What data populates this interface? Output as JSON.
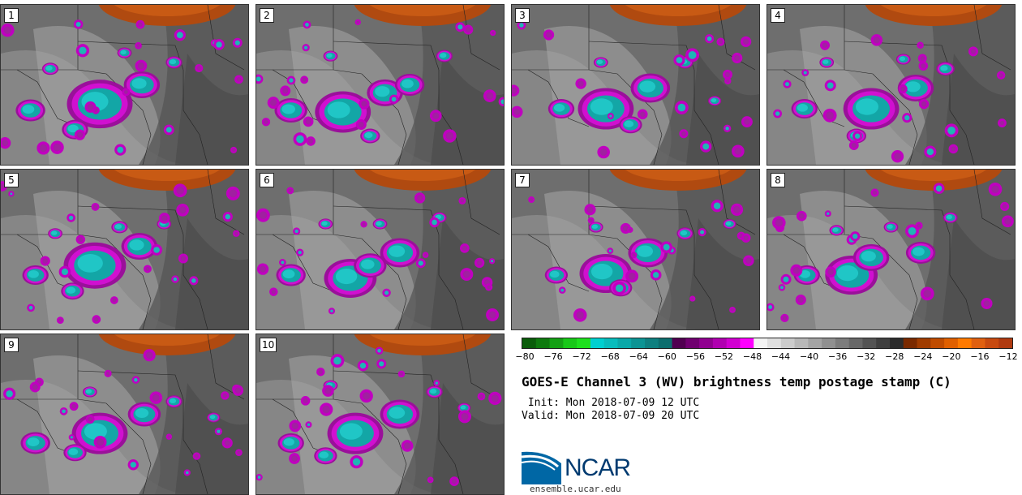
{
  "panels": [
    {
      "label": "1",
      "blobs": [
        [
          0.4,
          0.62,
          1.0
        ],
        [
          0.57,
          0.5,
          0.55
        ],
        [
          0.12,
          0.66,
          0.45
        ],
        [
          0.3,
          0.78,
          0.4
        ],
        [
          0.7,
          0.36,
          0.25
        ],
        [
          0.2,
          0.4,
          0.25
        ],
        [
          0.5,
          0.3,
          0.22
        ]
      ]
    },
    {
      "label": "2",
      "blobs": [
        [
          0.35,
          0.67,
          0.85
        ],
        [
          0.52,
          0.55,
          0.55
        ],
        [
          0.62,
          0.5,
          0.45
        ],
        [
          0.14,
          0.66,
          0.5
        ],
        [
          0.76,
          0.32,
          0.25
        ],
        [
          0.3,
          0.32,
          0.22
        ],
        [
          0.46,
          0.82,
          0.3
        ]
      ]
    },
    {
      "label": "3",
      "blobs": [
        [
          0.38,
          0.65,
          0.85
        ],
        [
          0.56,
          0.52,
          0.6
        ],
        [
          0.2,
          0.65,
          0.4
        ],
        [
          0.48,
          0.75,
          0.35
        ],
        [
          0.7,
          0.36,
          0.25
        ],
        [
          0.36,
          0.36,
          0.22
        ],
        [
          0.82,
          0.6,
          0.2
        ]
      ]
    },
    {
      "label": "4",
      "blobs": [
        [
          0.42,
          0.65,
          0.85
        ],
        [
          0.6,
          0.52,
          0.55
        ],
        [
          0.15,
          0.65,
          0.4
        ],
        [
          0.72,
          0.4,
          0.28
        ],
        [
          0.36,
          0.82,
          0.3
        ],
        [
          0.24,
          0.36,
          0.22
        ],
        [
          0.55,
          0.34,
          0.22
        ]
      ]
    },
    {
      "label": "5",
      "blobs": [
        [
          0.38,
          0.6,
          0.95
        ],
        [
          0.56,
          0.48,
          0.55
        ],
        [
          0.14,
          0.66,
          0.4
        ],
        [
          0.29,
          0.76,
          0.35
        ],
        [
          0.48,
          0.36,
          0.25
        ],
        [
          0.66,
          0.34,
          0.22
        ],
        [
          0.22,
          0.4,
          0.22
        ]
      ]
    },
    {
      "label": "6",
      "blobs": [
        [
          0.38,
          0.68,
          0.8
        ],
        [
          0.58,
          0.52,
          0.6
        ],
        [
          0.46,
          0.6,
          0.5
        ],
        [
          0.14,
          0.66,
          0.45
        ],
        [
          0.28,
          0.34,
          0.22
        ],
        [
          0.5,
          0.34,
          0.22
        ],
        [
          0.74,
          0.3,
          0.22
        ]
      ]
    },
    {
      "label": "7",
      "blobs": [
        [
          0.38,
          0.65,
          0.8
        ],
        [
          0.55,
          0.52,
          0.6
        ],
        [
          0.18,
          0.66,
          0.35
        ],
        [
          0.44,
          0.74,
          0.35
        ],
        [
          0.7,
          0.4,
          0.25
        ],
        [
          0.34,
          0.36,
          0.22
        ],
        [
          0.88,
          0.34,
          0.2
        ]
      ]
    },
    {
      "label": "8",
      "blobs": [
        [
          0.34,
          0.66,
          0.8
        ],
        [
          0.42,
          0.55,
          0.55
        ],
        [
          0.62,
          0.52,
          0.45
        ],
        [
          0.16,
          0.66,
          0.4
        ],
        [
          0.5,
          0.36,
          0.22
        ],
        [
          0.28,
          0.38,
          0.22
        ],
        [
          0.74,
          0.3,
          0.22
        ]
      ]
    },
    {
      "label": "9",
      "blobs": [
        [
          0.4,
          0.62,
          0.85
        ],
        [
          0.58,
          0.5,
          0.5
        ],
        [
          0.14,
          0.68,
          0.45
        ],
        [
          0.3,
          0.74,
          0.35
        ],
        [
          0.7,
          0.42,
          0.25
        ],
        [
          0.36,
          0.36,
          0.22
        ],
        [
          0.86,
          0.52,
          0.2
        ]
      ]
    },
    {
      "label": "10",
      "blobs": [
        [
          0.4,
          0.62,
          0.85
        ],
        [
          0.58,
          0.5,
          0.6
        ],
        [
          0.14,
          0.68,
          0.4
        ],
        [
          0.28,
          0.76,
          0.35
        ],
        [
          0.72,
          0.36,
          0.25
        ],
        [
          0.3,
          0.32,
          0.22
        ],
        [
          0.84,
          0.46,
          0.2
        ]
      ]
    }
  ],
  "colorbar": {
    "colors": [
      "#0a5c0a",
      "#0e7a0e",
      "#14a014",
      "#18c818",
      "#1ee01e",
      "#00d0d0",
      "#08bcbc",
      "#0aa8a8",
      "#0c9494",
      "#0e8080",
      "#0c6e6e",
      "#500050",
      "#700070",
      "#900090",
      "#b000b0",
      "#d000d0",
      "#ff00ff",
      "#f4f4f4",
      "#e0e0e0",
      "#cccccc",
      "#b8b8b8",
      "#a4a4a4",
      "#909090",
      "#7c7c7c",
      "#686868",
      "#545454",
      "#404040",
      "#2c2c2c",
      "#7a2a00",
      "#a03c00",
      "#c04c00",
      "#e06000",
      "#ff7a00",
      "#e06010",
      "#c84a10",
      "#b03a10"
    ],
    "ticks": [
      "−80",
      "−76",
      "−72",
      "−68",
      "−64",
      "−60",
      "−56",
      "−52",
      "−48",
      "−44",
      "−40",
      "−36",
      "−32",
      "−28",
      "−24",
      "−20",
      "−16",
      "−12"
    ]
  },
  "title": "GOES-E Channel 3 (WV) brightness temp postage stamp (C)",
  "init": " Init: Mon 2018-07-09 12 UTC",
  "valid": "Valid: Mon 2018-07-09 20 UTC",
  "logo": {
    "text": "NCAR",
    "url": "ensemble.ucar.edu",
    "color": "#0067a5"
  },
  "map_colors": {
    "cold_cloud": "#1fb5b5",
    "ring": "#c000c0",
    "dry": "#b04a10",
    "moist": "#9a9a9a",
    "background": "#6a6a6a"
  }
}
